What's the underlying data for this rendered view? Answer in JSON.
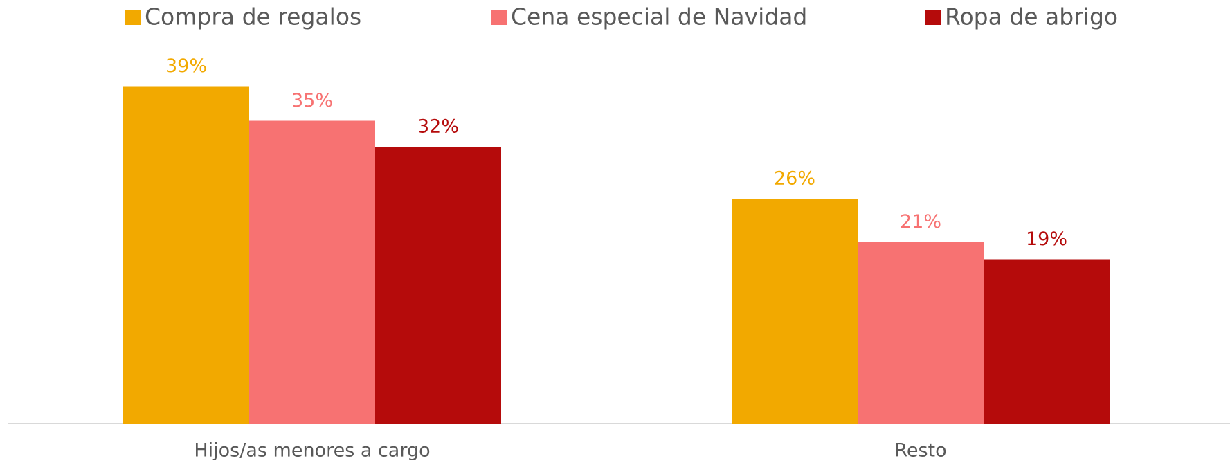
{
  "chart_data": {
    "type": "bar",
    "categories": [
      "Hijos/as menores a cargo",
      "Resto"
    ],
    "series": [
      {
        "name": "Compra de regalos",
        "color": "#f2a900",
        "values": [
          39,
          26
        ],
        "value_labels": [
          "39%",
          "26%"
        ]
      },
      {
        "name": "Cena especial de Navidad",
        "color": "#f77272",
        "values": [
          35,
          21
        ],
        "value_labels": [
          "35%",
          "21%"
        ]
      },
      {
        "name": "Ropa de abrigo",
        "color": "#b50b0b",
        "values": [
          32,
          19
        ],
        "value_labels": [
          "32%",
          "19%"
        ]
      }
    ],
    "legend": "top"
  }
}
